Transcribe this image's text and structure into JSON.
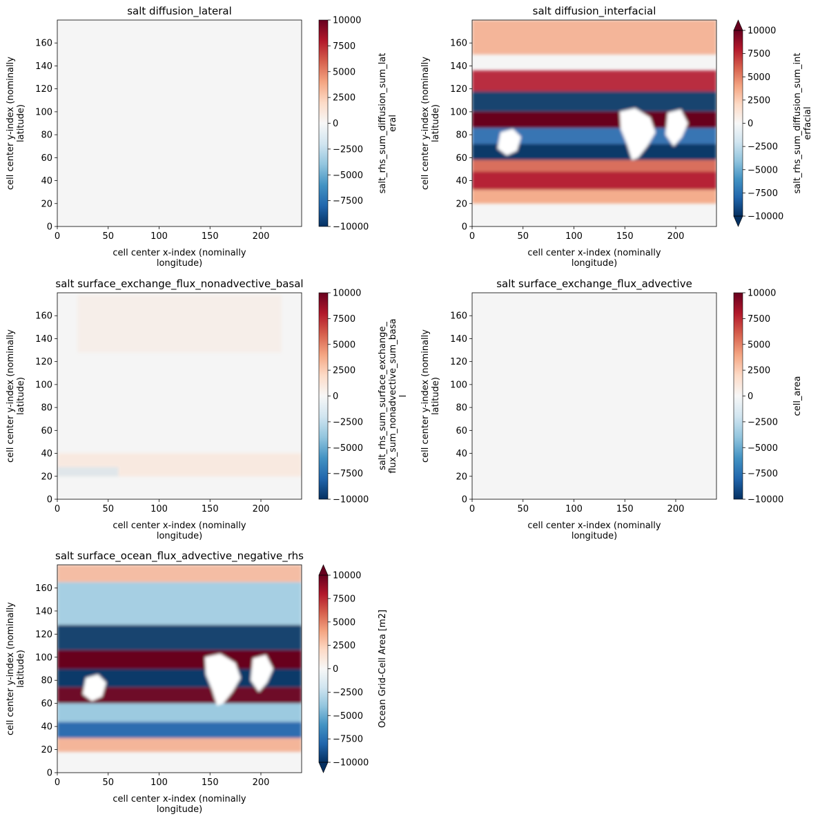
{
  "chart_data": [
    {
      "type": "heatmap",
      "title": "salt diffusion_lateral",
      "xlabel": [
        "cell center x-index (nominally",
        "longitude)"
      ],
      "ylabel": [
        "cell center y-index (nominally",
        "latitude)"
      ],
      "xlim": [
        0,
        240
      ],
      "ylim": [
        0,
        180
      ],
      "xticks": [
        "0",
        "50",
        "100",
        "150",
        "200"
      ],
      "yticks": [
        "0",
        "20",
        "40",
        "60",
        "80",
        "100",
        "120",
        "140",
        "160"
      ],
      "colorbar": {
        "label": [
          "salt_rhs_sum_diffusion_sum_lat",
          "eral"
        ],
        "ticks": [
          "10000",
          "7500",
          "5000",
          "2500",
          "0",
          "−2500",
          "−5000",
          "−7500",
          "−10000"
        ],
        "range": [
          -10000,
          10000
        ],
        "extend": "neither",
        "colormap": "RdBu_r"
      },
      "field": "near-zero everywhere"
    },
    {
      "type": "heatmap",
      "title": "salt diffusion_interfacial",
      "xlabel": [
        "cell center x-index (nominally",
        "longitude)"
      ],
      "ylabel": [
        "cell center y-index (nominally",
        "latitude)"
      ],
      "xlim": [
        0,
        240
      ],
      "ylim": [
        0,
        180
      ],
      "xticks": [
        "0",
        "50",
        "100",
        "150",
        "200"
      ],
      "yticks": [
        "0",
        "20",
        "40",
        "60",
        "80",
        "100",
        "120",
        "140",
        "160"
      ],
      "colorbar": {
        "label": [
          "salt_rhs_sum_diffusion_sum_int",
          "erfacial"
        ],
        "ticks": [
          "10000",
          "7500",
          "5000",
          "2500",
          "0",
          "−2500",
          "−5000",
          "−7500",
          "−10000"
        ],
        "range": [
          -10000,
          10000
        ],
        "extend": "both",
        "colormap": "RdBu_r"
      },
      "field": "strong positive subtropical bands, strong negative tropical bands"
    },
    {
      "type": "heatmap",
      "title": "salt surface_exchange_flux_nonadvective_basal",
      "xlabel": [
        "cell center x-index (nominally",
        "longitude)"
      ],
      "ylabel": [
        "cell center y-index (nominally",
        "latitude)"
      ],
      "xlim": [
        0,
        240
      ],
      "ylim": [
        0,
        180
      ],
      "xticks": [
        "0",
        "50",
        "100",
        "150",
        "200"
      ],
      "yticks": [
        "0",
        "20",
        "40",
        "60",
        "80",
        "100",
        "120",
        "140",
        "160"
      ],
      "colorbar": {
        "label": [
          "salt_rhs_sum_surface_exchange_",
          "flux_sum_nonadvective_sum_basa",
          "l"
        ],
        "ticks": [
          "10000",
          "7500",
          "5000",
          "2500",
          "0",
          "−2500",
          "−5000",
          "−7500",
          "−10000"
        ],
        "range": [
          -10000,
          10000
        ],
        "extend": "neither",
        "colormap": "RdBu_r"
      },
      "field": "weak values near 20-40 and 120-180"
    },
    {
      "type": "heatmap",
      "title": "salt surface_exchange_flux_advective",
      "xlabel": [
        "cell center x-index (nominally",
        "longitude)"
      ],
      "ylabel": [
        "cell center y-index (nominally",
        "latitude)"
      ],
      "xlim": [
        0,
        240
      ],
      "ylim": [
        0,
        180
      ],
      "xticks": [
        "0",
        "50",
        "100",
        "150",
        "200"
      ],
      "yticks": [
        "0",
        "20",
        "40",
        "60",
        "80",
        "100",
        "120",
        "140",
        "160"
      ],
      "colorbar": {
        "label": [
          "cell_area"
        ],
        "ticks": [
          "10000",
          "7500",
          "5000",
          "2500",
          "0",
          "−2500",
          "−5000",
          "−7500",
          "−10000"
        ],
        "range": [
          -10000,
          10000
        ],
        "extend": "neither",
        "colormap": "RdBu_r"
      },
      "field": "zero everywhere"
    },
    {
      "type": "heatmap",
      "title": "salt surface_ocean_flux_advective_negative_rhs",
      "xlabel": [
        "cell center x-index (nominally",
        "longitude)"
      ],
      "ylabel": [
        "cell center y-index (nominally",
        "latitude)"
      ],
      "xlim": [
        0,
        240
      ],
      "ylim": [
        0,
        180
      ],
      "xticks": [
        "0",
        "50",
        "100",
        "150",
        "200"
      ],
      "yticks": [
        "0",
        "20",
        "40",
        "60",
        "80",
        "100",
        "120",
        "140",
        "160"
      ],
      "colorbar": {
        "label": [
          "Ocean Grid-Cell Area [m2]"
        ],
        "ticks": [
          "10000",
          "7500",
          "5000",
          "2500",
          "0",
          "−2500",
          "−5000",
          "−7500",
          "−10000"
        ],
        "range": [
          -10000,
          10000
        ],
        "extend": "both",
        "colormap": "RdBu_r"
      },
      "field": "strong positive subtropical bands, strong negative tropical and southern bands"
    }
  ]
}
